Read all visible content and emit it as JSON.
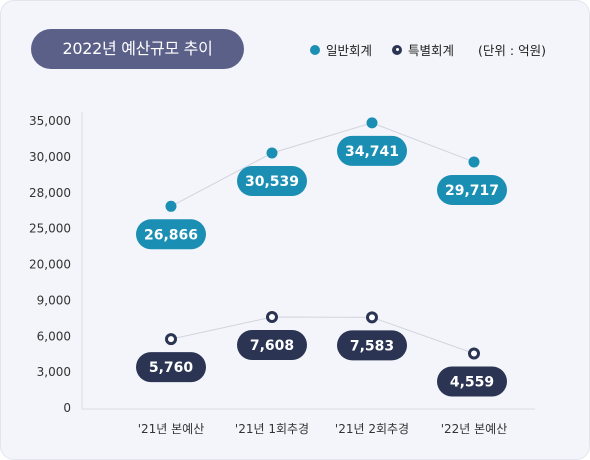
{
  "title": "2022년 예산규모 추이",
  "legend": {
    "general": "일반회계",
    "special": "특별회계",
    "unit": "(단위 : 억원)"
  },
  "colors": {
    "general": "#1a8fb3",
    "special": "#2b3553",
    "title_bg": "#5b6088",
    "background": "#f4f5fa"
  },
  "chart_data": {
    "type": "line",
    "categories": [
      "'21년 본예산",
      "'21년 1회추경",
      "'21년 2회추경",
      "'22년 본예산"
    ],
    "series": [
      {
        "name": "일반회계",
        "values": [
          26866,
          30539,
          34741,
          29717
        ],
        "labels": [
          "26,866",
          "30,539",
          "34,741",
          "29,717"
        ]
      },
      {
        "name": "특별회계",
        "values": [
          5760,
          7608,
          7583,
          4559
        ],
        "labels": [
          "5,760",
          "7,608",
          "7,583",
          "4,559"
        ]
      }
    ],
    "y_ticks": [
      "35,000",
      "30,000",
      "28,000",
      "25,000",
      "20,000",
      "9,000",
      "6,000",
      "3,000",
      "0"
    ],
    "y_tick_values": [
      35000,
      30000,
      28000,
      25000,
      20000,
      9000,
      6000,
      3000,
      0
    ],
    "axis_note": "y axis is broken (non-linear tick spacing)",
    "legend_position": "top-right",
    "grid": false
  }
}
